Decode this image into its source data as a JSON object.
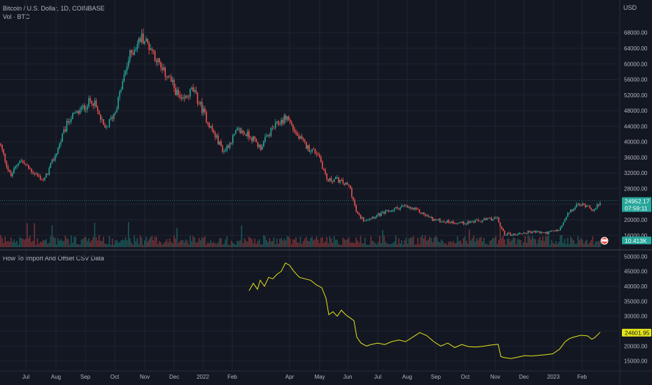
{
  "header": {
    "symbol_title": "Bitcoin / U.S. Dollar, 1D, COINBASE",
    "volume_label": "Vol · BTC",
    "indicator_title": "How To Import And Offset CSV Data",
    "currency": "USD"
  },
  "colors": {
    "background": "#131722",
    "grid": "#1f2433",
    "up": "#26a69a",
    "down": "#ef5350",
    "csv_line": "#e6e619",
    "axis_text": "#b2b5be",
    "separator": "#2a2e39"
  },
  "badges": {
    "price": "24952.17",
    "countdown": "07:59:11",
    "volume": "10.413K",
    "indicator": "24601.95"
  },
  "chart_data": [
    {
      "type": "candlestick",
      "title": "Bitcoin / U.S. Dollar, 1D, COINBASE",
      "y_ticks": [
        "68000.00",
        "64000.00",
        "60000.00",
        "56000.00",
        "52000.00",
        "48000.00",
        "44000.00",
        "40000.00",
        "36000.00",
        "32000.00",
        "28000.00",
        "24000.00",
        "20000.00",
        "16000.00"
      ],
      "ylim": [
        13000,
        71000
      ],
      "x_ticks": [
        "Jul",
        "Aug",
        "Sep",
        "Oct",
        "Nov",
        "Dec",
        "2022",
        "Feb",
        "Apr",
        "May",
        "Jun",
        "Jul",
        "Aug",
        "Sep",
        "Oct",
        "Nov",
        "Dec",
        "2023",
        "Feb"
      ],
      "x_tick_positions": [
        37,
        80,
        122,
        164,
        207,
        249,
        290,
        332,
        414,
        457,
        497,
        540,
        582,
        623,
        665,
        708,
        749,
        791,
        832
      ],
      "close_path": {
        "x": [
          0,
          15,
          28,
          42,
          63,
          80,
          99,
          112,
          132,
          150,
          165,
          185,
          203,
          218,
          232,
          240,
          260,
          275,
          290,
          303,
          320,
          340,
          358,
          372,
          390,
          410,
          425,
          440,
          455,
          468,
          480,
          500,
          510,
          520,
          545,
          575,
          595,
          620,
          640,
          660,
          690,
          710,
          720,
          735,
          760,
          780,
          800,
          812,
          825,
          840,
          850,
          858
        ],
        "y": [
          39500,
          31000,
          35500,
          33000,
          30000,
          37000,
          46000,
          47500,
          51000,
          43000,
          48000,
          62000,
          67000,
          63500,
          58000,
          57000,
          50000,
          53500,
          48000,
          43000,
          37500,
          43000,
          41500,
          38500,
          43500,
          46500,
          41500,
          38500,
          37000,
          30000,
          30500,
          28500,
          21500,
          20000,
          21500,
          23500,
          22500,
          20000,
          19500,
          19200,
          19800,
          20500,
          16500,
          16200,
          17000,
          16600,
          17400,
          21500,
          23800,
          23800,
          22300,
          24900
        ]
      },
      "volume_label": "Vol · BTC",
      "last_volume": "10.413K"
    },
    {
      "type": "line",
      "title": "How To Import And Offset CSV Data",
      "y_ticks": [
        "50000.00",
        "45000.00",
        "40000.00",
        "35000.00",
        "30000.00",
        "25000.00",
        "20000.00",
        "15000.00"
      ],
      "ylim": [
        14000,
        51000
      ],
      "series": [
        {
          "color": "#e6e619",
          "x": [
            356,
            362,
            368,
            372,
            378,
            384,
            390,
            396,
            402,
            408,
            414,
            420,
            428,
            436,
            444,
            452,
            460,
            466,
            470,
            476,
            482,
            488,
            494,
            500,
            506,
            510,
            516,
            524,
            530,
            540,
            550,
            560,
            570,
            580,
            590,
            600,
            610,
            620,
            630,
            640,
            650,
            660,
            670,
            680,
            690,
            700,
            712,
            716,
            720,
            730,
            740,
            750,
            760,
            770,
            780,
            790,
            800,
            808,
            814,
            820,
            830,
            840,
            846,
            850,
            858
          ],
          "y": [
            38500,
            41000,
            39000,
            42000,
            40000,
            43000,
            42500,
            44000,
            45000,
            47800,
            47000,
            45000,
            43000,
            42500,
            42000,
            40500,
            39500,
            36000,
            30500,
            31500,
            30000,
            32000,
            30500,
            29500,
            28500,
            23000,
            21000,
            20000,
            20500,
            21000,
            20500,
            21500,
            22000,
            21500,
            23000,
            24500,
            23500,
            21500,
            20000,
            21000,
            19500,
            20500,
            19800,
            19700,
            19900,
            20300,
            20600,
            16500,
            16200,
            15800,
            16300,
            16800,
            16700,
            16900,
            17100,
            17400,
            19000,
            21500,
            22500,
            23000,
            23600,
            23400,
            22300,
            22800,
            24600
          ]
        }
      ],
      "last_value": "24601.95"
    }
  ]
}
